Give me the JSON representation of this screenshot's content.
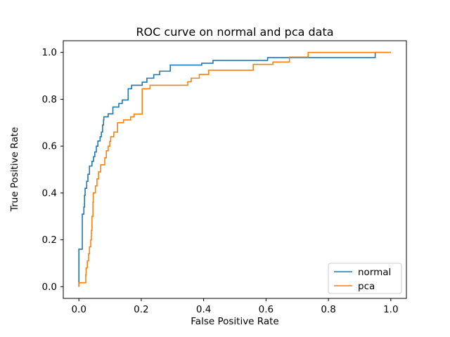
{
  "chart_data": {
    "type": "line",
    "subtype": "roc-step-curves",
    "title": "ROC curve on normal and pca data",
    "xlabel": "False Positive Rate",
    "ylabel": "True Positive Rate",
    "xlim": [
      -0.05,
      1.05
    ],
    "ylim": [
      -0.05,
      1.05
    ],
    "xticks": [
      "0.0",
      "0.2",
      "0.4",
      "0.6",
      "0.8",
      "1.0"
    ],
    "yticks": [
      "0.0",
      "0.2",
      "0.4",
      "0.6",
      "0.8",
      "1.0"
    ],
    "xtick_values": [
      0.0,
      0.2,
      0.4,
      0.6,
      0.8,
      1.0
    ],
    "ytick_values": [
      0.0,
      0.2,
      0.4,
      0.6,
      0.8,
      1.0
    ],
    "grid": false,
    "legend_position": "lower right",
    "colors": {
      "normal": "#1f77b4",
      "pca": "#ff7f0e",
      "spine": "#000000",
      "legend_edge": "#cccccc",
      "background": "#ffffff"
    },
    "series": [
      {
        "name": "normal",
        "color": "#1f77b4",
        "points": [
          [
            0.0,
            0.0
          ],
          [
            0.0,
            0.06
          ],
          [
            0.011,
            0.16
          ],
          [
            0.011,
            0.28
          ],
          [
            0.016,
            0.31
          ],
          [
            0.018,
            0.34
          ],
          [
            0.02,
            0.39
          ],
          [
            0.025,
            0.42
          ],
          [
            0.029,
            0.45
          ],
          [
            0.034,
            0.48
          ],
          [
            0.042,
            0.515
          ],
          [
            0.047,
            0.535
          ],
          [
            0.051,
            0.555
          ],
          [
            0.056,
            0.575
          ],
          [
            0.061,
            0.6
          ],
          [
            0.068,
            0.622
          ],
          [
            0.072,
            0.64
          ],
          [
            0.076,
            0.66
          ],
          [
            0.079,
            0.69
          ],
          [
            0.08,
            0.712
          ],
          [
            0.094,
            0.725
          ],
          [
            0.109,
            0.738
          ],
          [
            0.128,
            0.767
          ],
          [
            0.139,
            0.782
          ],
          [
            0.158,
            0.797
          ],
          [
            0.169,
            0.845
          ],
          [
            0.203,
            0.86
          ],
          [
            0.218,
            0.873
          ],
          [
            0.24,
            0.89
          ],
          [
            0.259,
            0.905
          ],
          [
            0.293,
            0.92
          ],
          [
            0.394,
            0.946
          ],
          [
            0.43,
            0.954
          ],
          [
            0.605,
            0.966
          ],
          [
            0.95,
            0.978
          ],
          [
            0.99,
            1.0
          ],
          [
            1.0,
            1.0
          ]
        ]
      },
      {
        "name": "pca",
        "color": "#ff7f0e",
        "points": [
          [
            0.0,
            0.0
          ],
          [
            0.004,
            0.017
          ],
          [
            0.022,
            0.017
          ],
          [
            0.023,
            0.05
          ],
          [
            0.027,
            0.08
          ],
          [
            0.031,
            0.11
          ],
          [
            0.034,
            0.14
          ],
          [
            0.038,
            0.17
          ],
          [
            0.04,
            0.2
          ],
          [
            0.042,
            0.24
          ],
          [
            0.045,
            0.3
          ],
          [
            0.046,
            0.36
          ],
          [
            0.053,
            0.4
          ],
          [
            0.058,
            0.43
          ],
          [
            0.063,
            0.46
          ],
          [
            0.07,
            0.49
          ],
          [
            0.083,
            0.52
          ],
          [
            0.088,
            0.55
          ],
          [
            0.094,
            0.58
          ],
          [
            0.099,
            0.6
          ],
          [
            0.102,
            0.62
          ],
          [
            0.112,
            0.64
          ],
          [
            0.124,
            0.66
          ],
          [
            0.143,
            0.7
          ],
          [
            0.166,
            0.712
          ],
          [
            0.177,
            0.725
          ],
          [
            0.203,
            0.737
          ],
          [
            0.228,
            0.845
          ],
          [
            0.349,
            0.86
          ],
          [
            0.36,
            0.875
          ],
          [
            0.386,
            0.89
          ],
          [
            0.416,
            0.906
          ],
          [
            0.559,
            0.924
          ],
          [
            0.622,
            0.949
          ],
          [
            0.675,
            0.959
          ],
          [
            0.735,
            0.98
          ],
          [
            0.885,
            1.0
          ],
          [
            1.0,
            1.0
          ]
        ]
      }
    ]
  }
}
